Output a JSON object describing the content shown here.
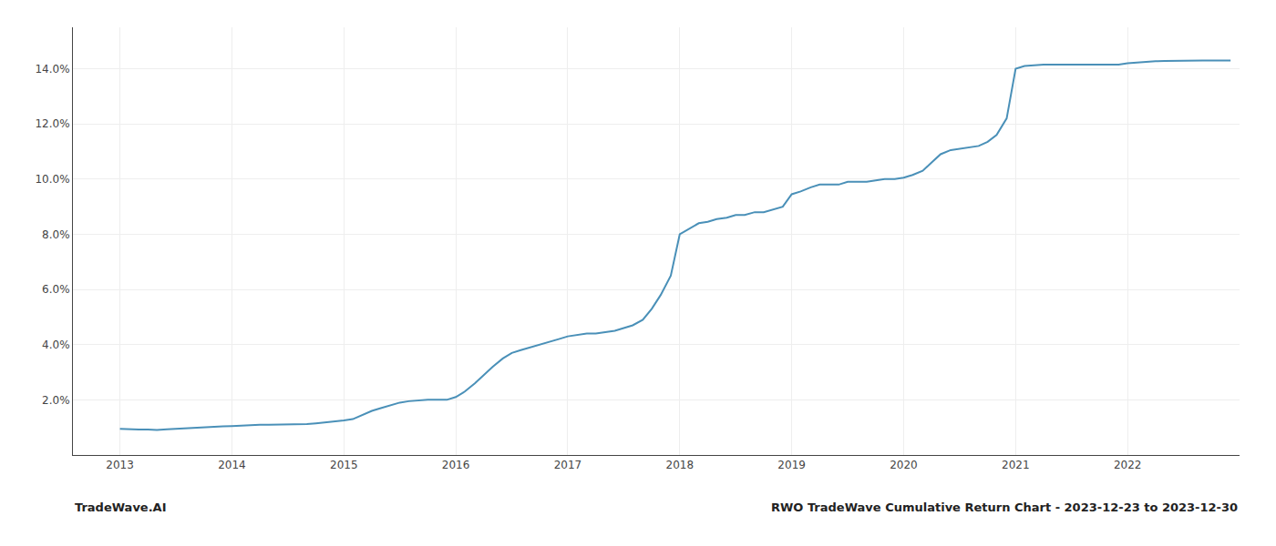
{
  "chart_data": {
    "type": "line",
    "annotations": [
      "TradeWave.AI",
      "RWO TradeWave Cumulative Return Chart - 2023-12-23 to 2023-12-30"
    ],
    "color": "#4a90b8",
    "grid": true,
    "x": [
      2013.0,
      2013.08,
      2013.17,
      2013.25,
      2013.33,
      2013.42,
      2013.5,
      2013.58,
      2013.67,
      2013.75,
      2013.83,
      2013.92,
      2014.0,
      2014.08,
      2014.17,
      2014.25,
      2014.33,
      2014.42,
      2014.5,
      2014.58,
      2014.67,
      2014.75,
      2014.83,
      2014.92,
      2015.0,
      2015.08,
      2015.17,
      2015.25,
      2015.33,
      2015.42,
      2015.5,
      2015.58,
      2015.67,
      2015.75,
      2015.83,
      2015.92,
      2016.0,
      2016.08,
      2016.17,
      2016.25,
      2016.33,
      2016.42,
      2016.5,
      2016.58,
      2016.67,
      2016.75,
      2016.83,
      2016.92,
      2017.0,
      2017.08,
      2017.17,
      2017.25,
      2017.33,
      2017.42,
      2017.5,
      2017.58,
      2017.67,
      2017.75,
      2017.83,
      2017.92,
      2018.0,
      2018.08,
      2018.17,
      2018.25,
      2018.33,
      2018.42,
      2018.5,
      2018.58,
      2018.67,
      2018.75,
      2018.83,
      2018.92,
      2019.0,
      2019.08,
      2019.17,
      2019.25,
      2019.33,
      2019.42,
      2019.5,
      2019.58,
      2019.67,
      2019.75,
      2019.83,
      2019.92,
      2020.0,
      2020.08,
      2020.17,
      2020.25,
      2020.33,
      2020.42,
      2020.5,
      2020.58,
      2020.67,
      2020.75,
      2020.83,
      2020.92,
      2021.0,
      2021.08,
      2021.17,
      2021.25,
      2021.33,
      2021.42,
      2021.5,
      2021.58,
      2021.67,
      2021.75,
      2021.83,
      2021.92,
      2022.0,
      2022.08,
      2022.17,
      2022.25,
      2022.33,
      2022.42,
      2022.5,
      2022.58,
      2022.67,
      2022.75,
      2022.83,
      2022.92
    ],
    "values": [
      0.0095,
      0.0093,
      0.0092,
      0.0092,
      0.0091,
      0.0093,
      0.0095,
      0.0097,
      0.0099,
      0.0101,
      0.0103,
      0.0104,
      0.0105,
      0.0107,
      0.0109,
      0.011,
      0.011,
      0.011,
      0.011,
      0.011,
      0.0112,
      0.0115,
      0.0118,
      0.012,
      0.0125,
      0.013,
      0.0145,
      0.016,
      0.017,
      0.018,
      0.019,
      0.0195,
      0.0198,
      0.02,
      0.02,
      0.02,
      0.021,
      0.023,
      0.026,
      0.029,
      0.032,
      0.035,
      0.037,
      0.038,
      0.039,
      0.04,
      0.041,
      0.042,
      0.043,
      0.0435,
      0.044,
      0.044,
      0.0445,
      0.045,
      0.046,
      0.047,
      0.049,
      0.053,
      0.058,
      0.065,
      0.08,
      0.082,
      0.084,
      0.0845,
      0.0855,
      0.086,
      0.087,
      0.087,
      0.088,
      0.088,
      0.089,
      0.09,
      0.0945,
      0.0955,
      0.097,
      0.098,
      0.098,
      0.098,
      0.099,
      0.099,
      0.099,
      0.0995,
      0.1,
      0.1,
      0.1005,
      0.1015,
      0.103,
      0.106,
      0.109,
      0.1105,
      0.111,
      0.1115,
      0.112,
      0.1135,
      0.116,
      0.122,
      0.14,
      0.141,
      0.1413,
      0.1415,
      0.1415,
      0.1415,
      0.1415,
      0.1415,
      0.1415,
      0.1415,
      0.1415,
      0.1415,
      0.142,
      0.1423,
      0.1425,
      0.1427,
      0.1428,
      0.1429,
      0.143,
      0.143,
      0.143,
      0.143,
      0.143,
      0.143
    ],
    "xlim": [
      2012.58,
      2023.0
    ],
    "xticks": [
      2013,
      2014,
      2015,
      2016,
      2017,
      2018,
      2019,
      2020,
      2021,
      2022
    ],
    "ylim": [
      0.0,
      0.155
    ],
    "yticks": [
      {
        "value": 0.02,
        "label": "2.0%"
      },
      {
        "value": 0.04,
        "label": "4.0%"
      },
      {
        "value": 0.06,
        "label": "6.0%"
      },
      {
        "value": 0.08,
        "label": "8.0%"
      },
      {
        "value": 0.1,
        "label": "10.0%"
      },
      {
        "value": 0.12,
        "label": "12.0%"
      },
      {
        "value": 0.14,
        "label": "14.0%"
      }
    ]
  }
}
